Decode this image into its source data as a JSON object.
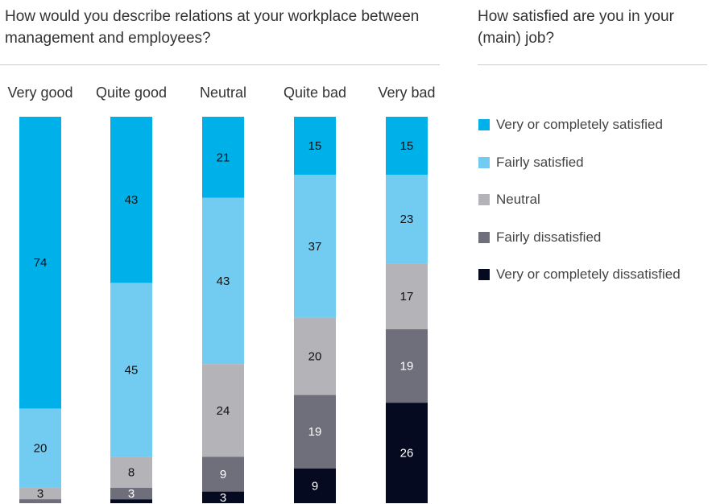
{
  "left_title": "How would you describe relations at your workplace between management and employees?",
  "right_title": "How satisfied are you in your (main) job?",
  "chart_data": {
    "type": "bar",
    "stacked": true,
    "categories": [
      "Very good",
      "Quite good",
      "Neutral",
      "Quite bad",
      "Very bad"
    ],
    "series": [
      {
        "name": "Very or completely satisfied",
        "color": "#00b0e8",
        "values": [
          74,
          43,
          21,
          15,
          15
        ]
      },
      {
        "name": "Fairly satisfied",
        "color": "#72ccf2",
        "values": [
          20,
          45,
          43,
          37,
          23
        ]
      },
      {
        "name": "Neutral",
        "color": "#b3b3b8",
        "values": [
          3,
          8,
          24,
          20,
          17
        ]
      },
      {
        "name": "Fairly dissatisfied",
        "color": "#6f6f7c",
        "values": [
          1,
          3,
          9,
          19,
          19
        ]
      },
      {
        "name": "Very or completely dissatisfied",
        "color": "#050a20",
        "values": [
          0,
          1,
          3,
          9,
          26
        ]
      }
    ],
    "data_labels": [
      [
        "74",
        "43",
        "21",
        "15",
        "15"
      ],
      [
        "20",
        "45",
        "43",
        "37",
        "23"
      ],
      [
        "3",
        "8",
        "24",
        "20",
        "17"
      ],
      [
        "",
        "3",
        "9",
        "19",
        "19"
      ],
      [
        "",
        "",
        "3",
        "9",
        "26"
      ]
    ],
    "legend_position": "right",
    "grid": false
  }
}
